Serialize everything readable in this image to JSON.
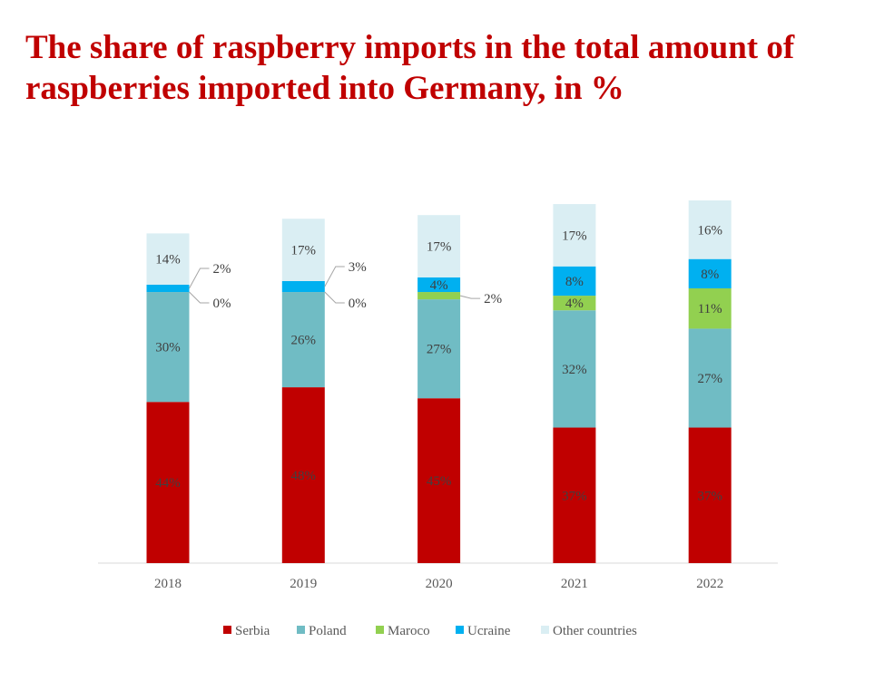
{
  "chart_data": {
    "type": "bar",
    "stacked": true,
    "title": "The share of raspberry imports in the total amount of raspberries imported into Germany, in %",
    "categories": [
      "2018",
      "2019",
      "2020",
      "2021",
      "2022"
    ],
    "series": [
      {
        "name": "Serbia",
        "color": "#c00000",
        "values": [
          44,
          48,
          45,
          37,
          37
        ]
      },
      {
        "name": "Poland",
        "color": "#70bcc4",
        "values": [
          30,
          26,
          27,
          32,
          27
        ]
      },
      {
        "name": "Maroco",
        "color": "#92d050",
        "values": [
          0,
          0,
          2,
          4,
          11
        ]
      },
      {
        "name": "Ucraine",
        "color": "#00b0f0",
        "values": [
          2,
          3,
          4,
          8,
          8
        ]
      },
      {
        "name": "Other countries",
        "color": "#daeef3",
        "values": [
          14,
          17,
          17,
          17,
          16
        ]
      }
    ],
    "legend_position": "bottom",
    "grid": false,
    "ylim": [
      0,
      100
    ]
  }
}
